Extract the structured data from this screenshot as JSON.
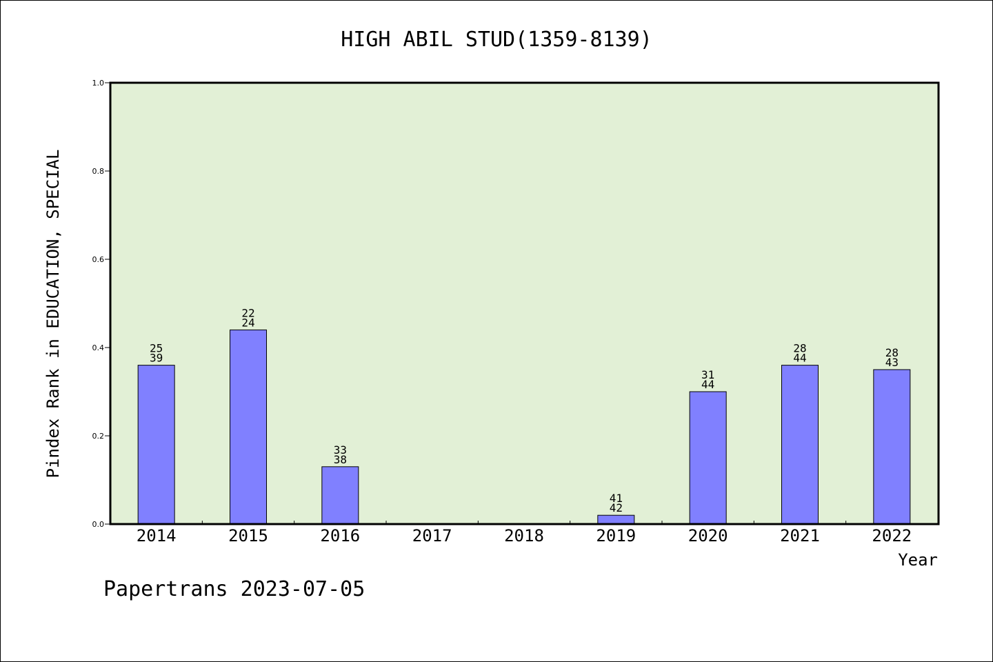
{
  "chart_data": {
    "type": "bar",
    "title": "HIGH ABIL STUD(1359-8139)",
    "xlabel": "Year",
    "ylabel": "Pindex Rank in EDUCATION, SPECIAL",
    "ylim": [
      0,
      1.0
    ],
    "yticks": [
      "0.0",
      "0.2",
      "0.4",
      "0.6",
      "0.8",
      "1.0"
    ],
    "categories": [
      "2014",
      "2015",
      "2016",
      "2017",
      "2018",
      "2019",
      "2020",
      "2021",
      "2022"
    ],
    "values": [
      0.36,
      0.44,
      0.13,
      0,
      0,
      0.02,
      0.3,
      0.36,
      0.35
    ],
    "label_top": [
      "25",
      "22",
      "33",
      "",
      "",
      "41",
      "31",
      "28",
      "28"
    ],
    "label_bottom": [
      "39",
      "24",
      "38",
      "",
      "",
      "42",
      "44",
      "44",
      "43"
    ],
    "grid": false,
    "colors": {
      "plot_background": "#e2f0d6",
      "bar_fill": "#8080ff",
      "axis": "#000000"
    }
  },
  "footer": "Papertrans 2023-07-05"
}
